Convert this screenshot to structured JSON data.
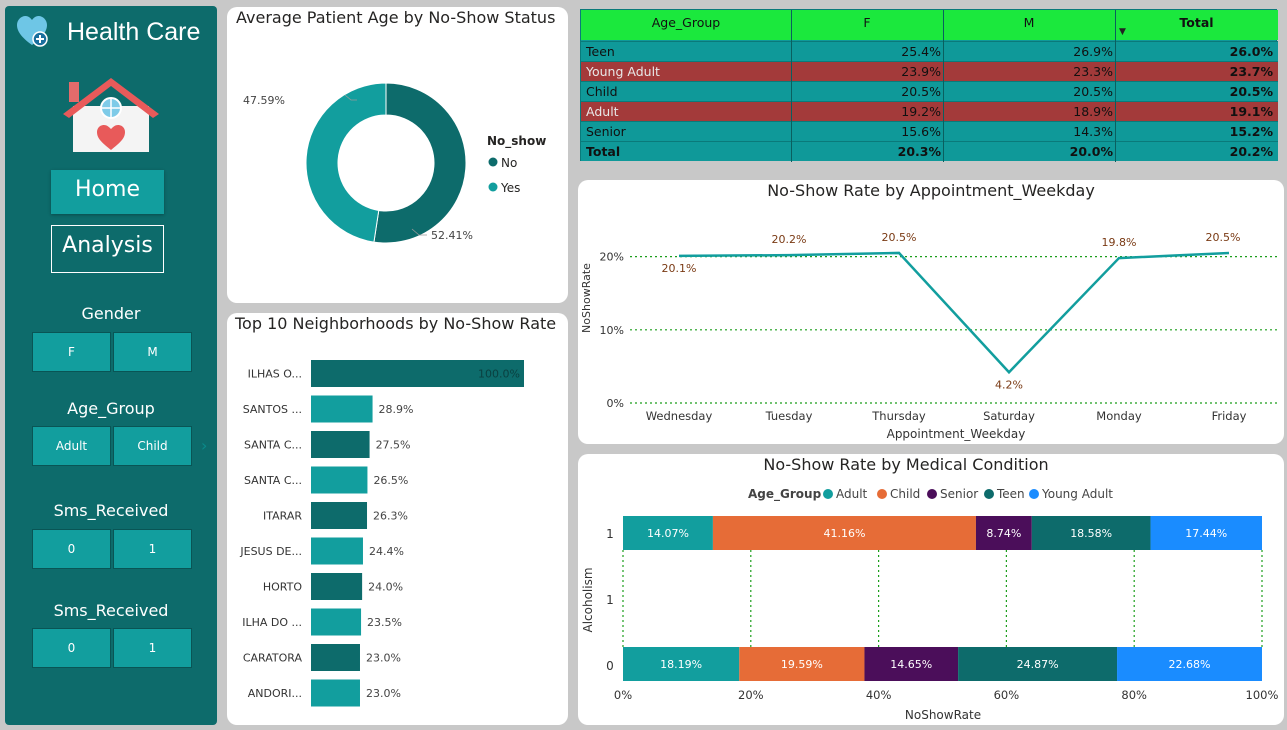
{
  "brand": {
    "title": "Health Care"
  },
  "nav": {
    "home": "Home",
    "analysis": "Analysis"
  },
  "slicers": [
    {
      "title": "Gender",
      "options": [
        "F",
        "M"
      ]
    },
    {
      "title": "Age_Group",
      "options": [
        "Adult",
        "Child"
      ]
    },
    {
      "title": "Sms_Received",
      "options": [
        "0",
        "1"
      ]
    },
    {
      "title": "Sms_Received",
      "options": [
        "0",
        "1"
      ]
    }
  ],
  "colors": {
    "teal_dark": "#0d6b6b",
    "teal": "#129e9e",
    "table_green": "#1be83d",
    "table_red": "#a33a3a",
    "orange": "#e66c37",
    "purple": "#4b0e5a",
    "blue": "#1a8cff",
    "grid_green": "#1a9e1a",
    "label_brown": "#7a3a14"
  },
  "matrix": {
    "headers": [
      "Age_Group",
      "F",
      "M",
      "Total"
    ],
    "rows": [
      {
        "cells": [
          "Teen",
          "25.4%",
          "26.9%",
          "26.0%"
        ],
        "highlight": false
      },
      {
        "cells": [
          "Young Adult",
          "23.9%",
          "23.3%",
          "23.7%"
        ],
        "highlight": true
      },
      {
        "cells": [
          "Child",
          "20.5%",
          "20.5%",
          "20.5%"
        ],
        "highlight": false
      },
      {
        "cells": [
          "Adult",
          "19.2%",
          "18.9%",
          "19.1%"
        ],
        "highlight": true
      },
      {
        "cells": [
          "Senior",
          "15.6%",
          "14.3%",
          "15.2%"
        ],
        "highlight": false
      }
    ],
    "total": [
      "Total",
      "20.3%",
      "20.0%",
      "20.2%"
    ]
  },
  "chart_data": [
    {
      "type": "pie",
      "title": "Average Patient Age by No-Show Status",
      "legend_title": "No_show",
      "legend_position": "right",
      "donut": true,
      "slices": [
        {
          "label": "No",
          "value": 52.41,
          "display": "52.41%",
          "color": "#0d6b6b"
        },
        {
          "label": "Yes",
          "value": 47.59,
          "display": "47.59%",
          "color": "#129e9e"
        }
      ]
    },
    {
      "type": "bar",
      "orientation": "horizontal",
      "title": "Top 10 Neighborhoods by No-Show Rate",
      "categories": [
        "ILHAS O...",
        "SANTOS ...",
        "SANTA C...",
        "SANTA C...",
        "ITARAR",
        "JESUS DE...",
        "HORTO",
        "ILHA DO ...",
        "CARATORA",
        "ANDORI..."
      ],
      "values": [
        100.0,
        28.9,
        27.5,
        26.5,
        26.3,
        24.4,
        24.0,
        23.5,
        23.0,
        23.0
      ],
      "labels": [
        "100.0%",
        "28.9%",
        "27.5%",
        "26.5%",
        "26.3%",
        "24.4%",
        "24.0%",
        "23.5%",
        "23.0%",
        "23.0%"
      ],
      "xlim": [
        0,
        100
      ]
    },
    {
      "type": "line",
      "title": "No-Show Rate by Appointment_Weekday",
      "xlabel": "Appointment_Weekday",
      "ylabel": "NoShowRate",
      "x": [
        "Wednesday",
        "Tuesday",
        "Thursday",
        "Saturday",
        "Monday",
        "Friday"
      ],
      "y": [
        20.1,
        20.2,
        20.5,
        4.2,
        19.8,
        20.5
      ],
      "labels": [
        "20.1%",
        "20.2%",
        "20.5%",
        "4.2%",
        "19.8%",
        "20.5%"
      ],
      "yticks": [
        "0%",
        "10%",
        "20%"
      ],
      "ylim": [
        0,
        25
      ],
      "grid": true
    },
    {
      "type": "bar",
      "orientation": "horizontal",
      "stacked": "100%",
      "title": "No-Show Rate by Medical Condition",
      "xlabel": "NoShowRate",
      "ylabel": "Alcoholism",
      "legend_title": "Age_Group",
      "legend_position": "top",
      "categories": [
        "1",
        "1",
        "0"
      ],
      "xticks": [
        "0%",
        "20%",
        "40%",
        "60%",
        "80%",
        "100%"
      ],
      "series": [
        {
          "name": "Adult",
          "color": "#129e9e",
          "values": [
            14.07,
            0,
            18.19
          ],
          "labels": [
            "14.07%",
            "",
            "18.19%"
          ]
        },
        {
          "name": "Child",
          "color": "#e66c37",
          "values": [
            41.16,
            0,
            19.59
          ],
          "labels": [
            "41.16%",
            "",
            "19.59%"
          ]
        },
        {
          "name": "Senior",
          "color": "#4b0e5a",
          "values": [
            8.74,
            0,
            14.65
          ],
          "labels": [
            "8.74%",
            "",
            "14.65%"
          ]
        },
        {
          "name": "Teen",
          "color": "#0d6b6b",
          "values": [
            18.58,
            0,
            24.87
          ],
          "labels": [
            "18.58%",
            "",
            "24.87%"
          ]
        },
        {
          "name": "Young Adult",
          "color": "#1a8cff",
          "values": [
            17.44,
            0,
            22.68
          ],
          "labels": [
            "17.44%",
            "",
            "22.68%"
          ]
        }
      ],
      "grid": true
    }
  ]
}
